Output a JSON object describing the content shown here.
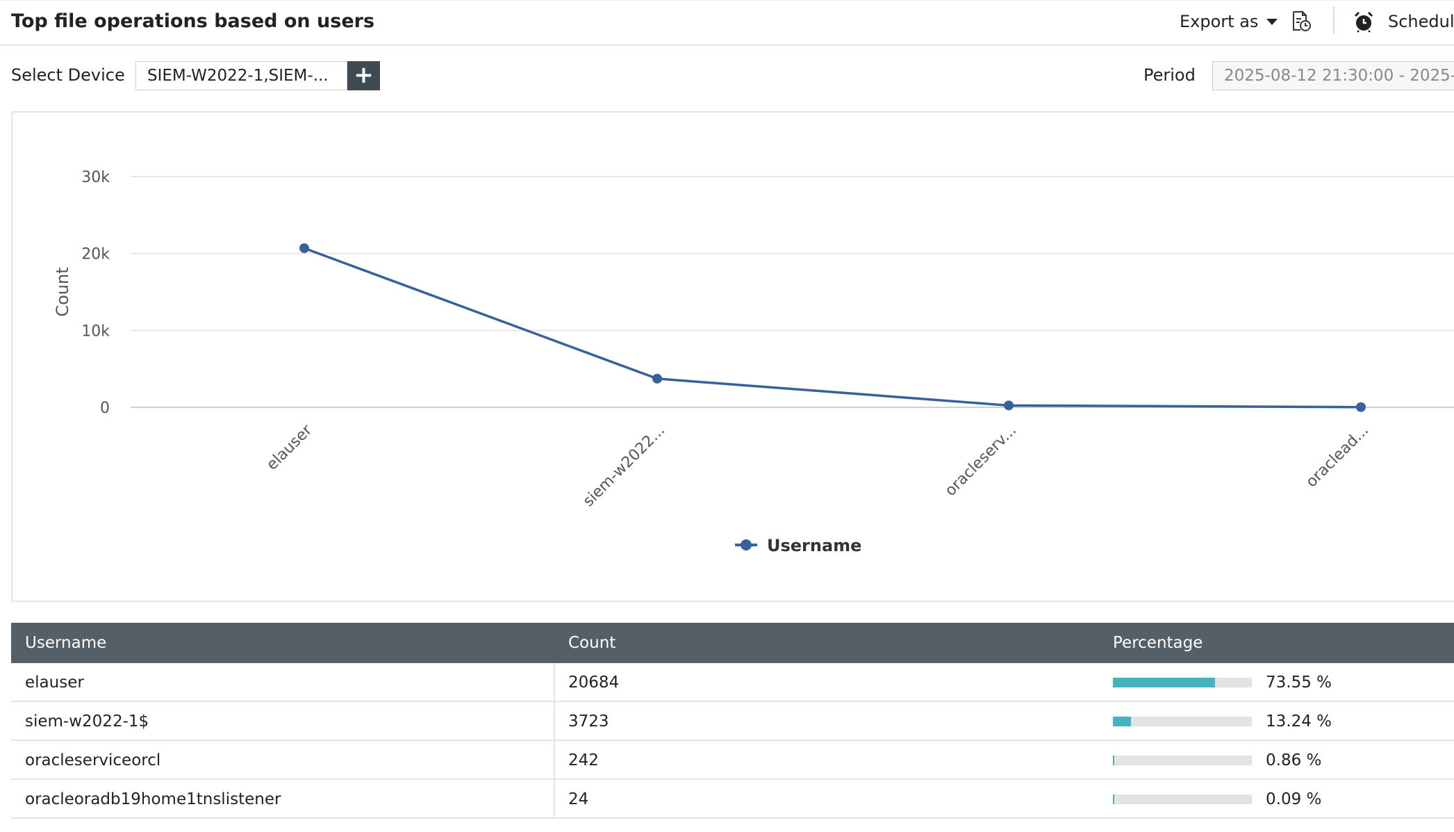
{
  "header": {
    "title": "Top file operations based on users",
    "export_label": "Export as",
    "schedule_label": "Schedule"
  },
  "filters": {
    "select_device_label": "Select Device",
    "device_value": "SIEM-W2022-1,SIEM-...",
    "add_label": "+",
    "period_label": "Period",
    "period_value": "2025-08-12 21:30:00 - 2025-"
  },
  "chart_data": {
    "type": "line",
    "categories": [
      "elauser",
      "siem-w2022...",
      "oracleserv...",
      "oraclead..."
    ],
    "series": [
      {
        "name": "Username",
        "values": [
          20684,
          3723,
          242,
          24
        ]
      }
    ],
    "ylabel": "Count",
    "xlabel": "",
    "ylim": [
      0,
      30000
    ],
    "yticks": [
      "0",
      "10k",
      "20k",
      "30k"
    ],
    "ytick_values": [
      0,
      10000,
      20000,
      30000
    ],
    "grid": true,
    "legend": "bottom-center",
    "color": "#36619a"
  },
  "table": {
    "headers": [
      "Username",
      "Count",
      "Percentage"
    ],
    "rows": [
      {
        "username": "elauser",
        "count": "20684",
        "percentage": "73.55 %",
        "fraction": 0.7355
      },
      {
        "username": "siem-w2022-1$",
        "count": "3723",
        "percentage": "13.24 %",
        "fraction": 0.1324
      },
      {
        "username": "oracleserviceorcl",
        "count": "242",
        "percentage": "0.86 %",
        "fraction": 0.0086
      },
      {
        "username": "oracleoradb19home1tnslistener",
        "count": "24",
        "percentage": "0.09 %",
        "fraction": 0.0009
      }
    ],
    "bar_color": "#44b2bf"
  }
}
